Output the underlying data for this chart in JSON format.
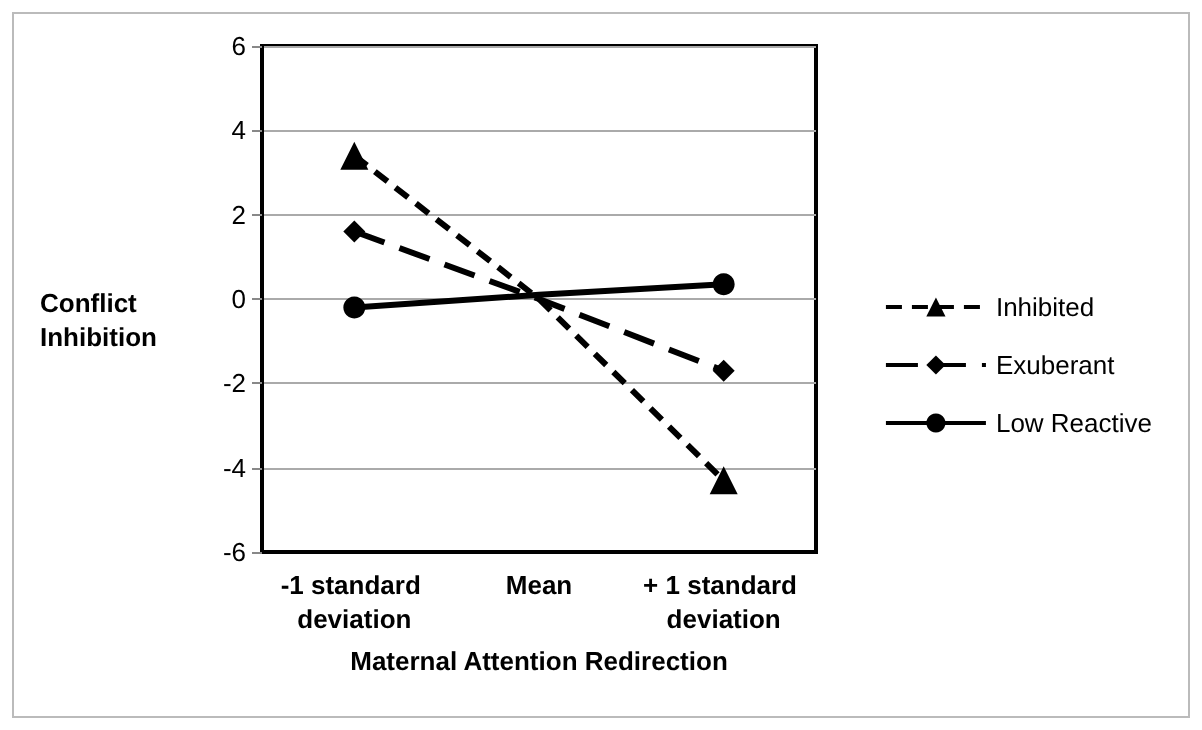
{
  "chart_data": {
    "type": "line",
    "xlabel": "Maternal Attention Redirection",
    "ylabel": "Conflict Inhibition",
    "categories": [
      "-1 standard deviation",
      "Mean",
      "+ 1 standard deviation"
    ],
    "series": [
      {
        "name": "Inhibited",
        "color": "#000000",
        "values": [
          3.4,
          0,
          -4.3
        ],
        "line_style": "dashed",
        "marker": "triangle"
      },
      {
        "name": "Exuberant",
        "color": "#000000",
        "values": [
          1.6,
          0,
          -1.7
        ],
        "line_style": "dashed",
        "marker": "diamond"
      },
      {
        "name": "Low Reactive",
        "color": "#000000",
        "values": [
          -0.2,
          0.1,
          0.35
        ],
        "line_style": "solid",
        "marker": "circle"
      }
    ],
    "ylim": [
      -6,
      6
    ],
    "yticks": [
      -6,
      -4,
      -2,
      0,
      2,
      4,
      6
    ],
    "grid": "y",
    "legend": "right"
  }
}
